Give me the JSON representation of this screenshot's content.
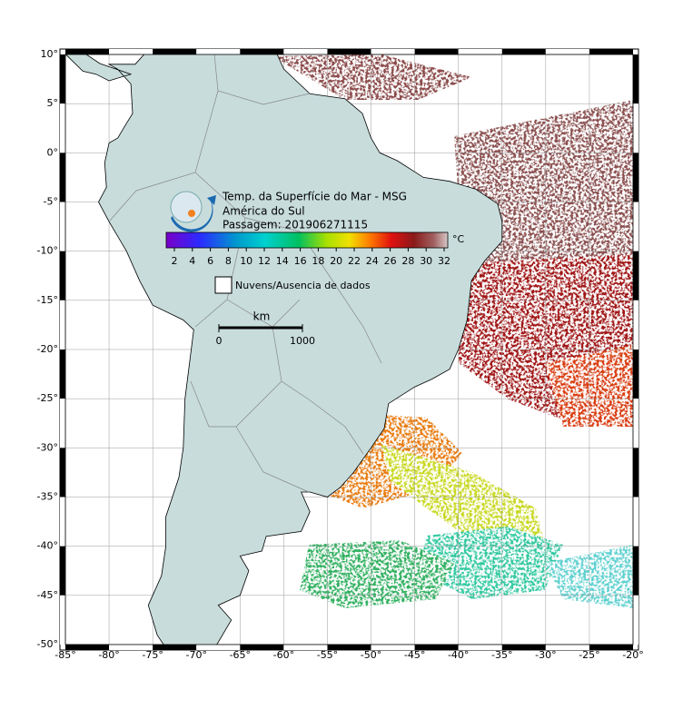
{
  "title": [
    "Temp. da Superfície do Mar - MSG",
    "América do Sul",
    "Passagem: 201906271115"
  ],
  "colorbar": {
    "ticks": [
      2,
      4,
      6,
      8,
      10,
      12,
      14,
      16,
      18,
      20,
      22,
      24,
      26,
      28,
      30,
      32
    ],
    "unit": "°C"
  },
  "legend": {
    "label": "Nuvens/Ausencia de dados"
  },
  "scale": {
    "label": "km",
    "ticks": [
      0,
      1000
    ]
  },
  "axes": {
    "xticks": [
      {
        "value": -85,
        "label": "-85°"
      },
      {
        "value": -80,
        "label": "-80°"
      },
      {
        "value": -75,
        "label": "-75°"
      },
      {
        "value": -70,
        "label": "-70°"
      },
      {
        "value": -65,
        "label": "-65°"
      },
      {
        "value": -60,
        "label": "-60°"
      },
      {
        "value": -55,
        "label": "-55°"
      },
      {
        "value": -50,
        "label": "-50°"
      },
      {
        "value": -45,
        "label": "-45°"
      },
      {
        "value": -40,
        "label": "-40°"
      },
      {
        "value": -35,
        "label": "-35°"
      },
      {
        "value": -30,
        "label": "-30°"
      },
      {
        "value": -25,
        "label": "-25°"
      },
      {
        "value": -20,
        "label": "-20°"
      }
    ],
    "yticks": [
      {
        "value": 10,
        "label": "10°"
      },
      {
        "value": 5,
        "label": "5°"
      },
      {
        "value": 0,
        "label": "0°"
      },
      {
        "value": -5,
        "label": "-5°"
      },
      {
        "value": -10,
        "label": "-10°"
      },
      {
        "value": -15,
        "label": "-15°"
      },
      {
        "value": -20,
        "label": "-20°"
      },
      {
        "value": -25,
        "label": "-25°"
      },
      {
        "value": -30,
        "label": "-30°"
      },
      {
        "value": -35,
        "label": "-35°"
      },
      {
        "value": -40,
        "label": "-40°"
      },
      {
        "value": -45,
        "label": "-45°"
      },
      {
        "value": -50,
        "label": "-50°"
      }
    ]
  }
}
